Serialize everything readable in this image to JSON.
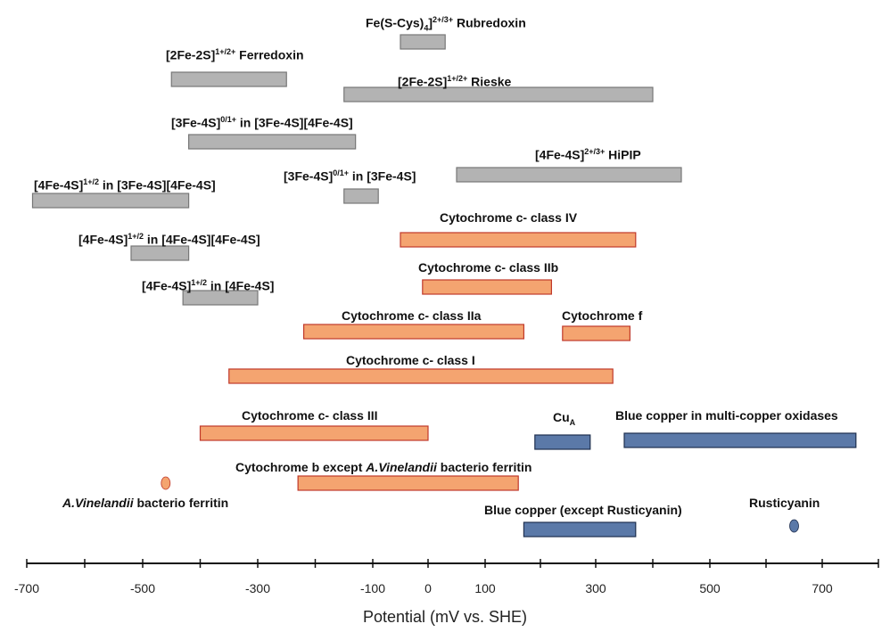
{
  "chart_data": {
    "type": "range-bar",
    "title": "",
    "xlabel": "Potential (mV vs. SHE)",
    "ylabel": "",
    "xlim": [
      -700,
      800
    ],
    "x_ticks": [
      -700,
      -500,
      -300,
      -100,
      0,
      100,
      300,
      500,
      700
    ],
    "colors": {
      "iron_sulfur": "#b3b3b3",
      "cytochrome": "#f4a470",
      "copper": "#5b79a8",
      "iron_sulfur_border": "#777777",
      "cytochrome_border": "#c0392b",
      "copper_border": "#1f2f4f"
    },
    "ranges": [
      {
        "label_html": "Fe(S-Cys)<sub>4</sub>]<sup>2+/3+</sup> Rubredoxin",
        "label": "Fe(S-Cys)4]2+/3+ Rubredoxin",
        "min": -50,
        "max": 30,
        "group": "iron_sulfur"
      },
      {
        "label_html": "[2Fe-2S]<sup>1+/2+</sup> Ferredoxin",
        "label": "[2Fe-2S]1+/2+ Ferredoxin",
        "min": -450,
        "max": -250,
        "group": "iron_sulfur"
      },
      {
        "label_html": "[2Fe-2S]<sup>1+/2+</sup> Rieske",
        "label": "[2Fe-2S]1+/2+ Rieske",
        "min": -150,
        "max": 400,
        "group": "iron_sulfur"
      },
      {
        "label_html": "[3Fe-4S]<sup>0/1+</sup> in [3Fe-4S][4Fe-4S]",
        "label": "[3Fe-4S]0/1+ in [3Fe-4S][4Fe-4S]",
        "min": -420,
        "max": -130,
        "group": "iron_sulfur"
      },
      {
        "label_html": "[4Fe-4S]<sup>2+/3+</sup> HiPIP",
        "label": "[4Fe-4S]2+/3+ HiPIP",
        "min": 50,
        "max": 450,
        "group": "iron_sulfur"
      },
      {
        "label_html": "[4Fe-4S]<sup>1+/2</sup> in [3Fe-4S][4Fe-4S]",
        "label": "[4Fe-4S]1+/2 in [3Fe-4S][4Fe-4S]",
        "min": -690,
        "max": -420,
        "group": "iron_sulfur"
      },
      {
        "label_html": "[3Fe-4S]<sup>0/1+</sup> in [3Fe-4S]",
        "label": "[3Fe-4S]0/1+ in [3Fe-4S]",
        "min": -150,
        "max": -90,
        "group": "iron_sulfur"
      },
      {
        "label_html": "Cytochrome c- class IV",
        "label": "Cytochrome c- class IV",
        "min": -50,
        "max": 370,
        "group": "cytochrome"
      },
      {
        "label_html": "[4Fe-4S]<sup>1+/2</sup> in [4Fe-4S][4Fe-4S]",
        "label": "[4Fe-4S]1+/2 in [4Fe-4S][4Fe-4S]",
        "min": -520,
        "max": -420,
        "group": "iron_sulfur"
      },
      {
        "label_html": "Cytochrome c- class IIb",
        "label": "Cytochrome c- class IIb",
        "min": -10,
        "max": 220,
        "group": "cytochrome"
      },
      {
        "label_html": "[4Fe-4S]<sup>1+/2</sup> in [4Fe-4S]",
        "label": "[4Fe-4S]1+/2 in [4Fe-4S]",
        "min": -430,
        "max": -300,
        "group": "iron_sulfur"
      },
      {
        "label_html": "Cytochrome c- class IIa",
        "label": "Cytochrome c- class IIa",
        "min": -220,
        "max": 170,
        "group": "cytochrome"
      },
      {
        "label_html": "Cytochrome f",
        "label": "Cytochrome f",
        "min": 240,
        "max": 360,
        "group": "cytochrome"
      },
      {
        "label_html": "Cytochrome c- class I",
        "label": "Cytochrome c- class I",
        "min": -350,
        "max": 330,
        "group": "cytochrome"
      },
      {
        "label_html": "Cytochrome c- class III",
        "label": "Cytochrome c- class III",
        "min": -400,
        "max": 0,
        "group": "cytochrome"
      },
      {
        "label_html": "Cu<sub>A</sub>",
        "label": "CuA",
        "min": 190,
        "max": 290,
        "group": "copper"
      },
      {
        "label_html": "Blue copper in multi-copper oxidases",
        "label": "Blue copper in multi-copper oxidases",
        "min": 350,
        "max": 760,
        "group": "copper"
      },
      {
        "label_html": "Cytochrome b except <i>A.Vinelandii</i> bacterio ferritin",
        "label": "Cytochrome b except A.Vinelandii bacterio ferritin",
        "min": -230,
        "max": 160,
        "group": "cytochrome"
      },
      {
        "label_html": "Blue copper (except Rusticyanin)",
        "label": "Blue copper (except Rusticyanin)",
        "min": 170,
        "max": 370,
        "group": "copper"
      }
    ],
    "points": [
      {
        "label_html": "<i>A.Vinelandii</i> bacterio ferritin",
        "label": "A.Vinelandii bacterio ferritin",
        "value": -460,
        "group": "cytochrome"
      },
      {
        "label_html": "Rusticyanin",
        "label": "Rusticyanin",
        "value": 650,
        "group": "copper"
      }
    ]
  }
}
